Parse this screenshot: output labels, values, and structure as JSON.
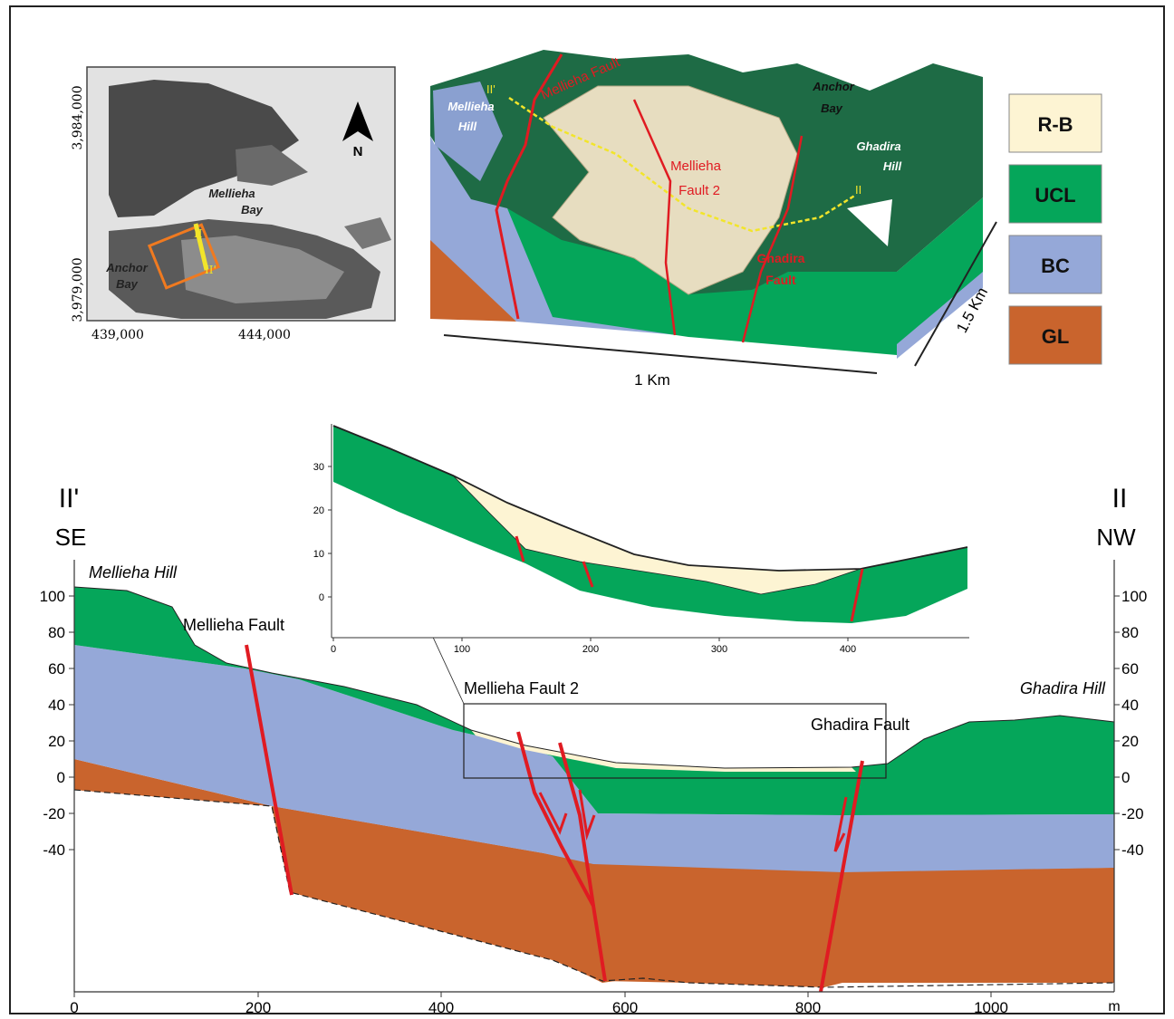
{
  "figure": {
    "map": {
      "north_label": "N",
      "bay_label_1": "Mellieha",
      "bay_label_2": "Bay",
      "anchor_label_1": "Anchor",
      "anchor_label_2": "Bay",
      "section_end_a": "II",
      "section_end_b": "II'",
      "y_ticks": [
        "3,984,000",
        "3,979,000"
      ],
      "x_ticks": [
        "439,000",
        "444,000"
      ]
    },
    "block3d": {
      "labels": {
        "mellieha_fault": "Mellieha Fault",
        "mellieha_fault_2_a": "Mellieha",
        "mellieha_fault_2_b": "Fault 2",
        "ghadira_fault_a": "Ghadira",
        "ghadira_fault_b": "Fault",
        "mellieha_hill_a": "Mellieha",
        "mellieha_hill_b": "Hill",
        "ghadira_hill_a": "Ghadira",
        "ghadira_hill_b": "Hill",
        "anchor_bay_a": "Anchor",
        "anchor_bay_b": "Bay",
        "section_a": "II'",
        "section_b": "II"
      },
      "scale_length": "1 Km",
      "scale_width": "1.5 Km"
    },
    "legend": [
      {
        "code": "R-B",
        "color": "#fdf4d3"
      },
      {
        "code": "UCL",
        "color": "#05a65a"
      },
      {
        "code": "BC",
        "color": "#95a8d8"
      },
      {
        "code": "GL",
        "color": "#c9642d"
      }
    ],
    "section": {
      "left_end": "II'",
      "left_dir": "SE",
      "right_end": "II",
      "right_dir": "NW",
      "left_hill": "Mellieha Hill",
      "right_hill": "Ghadira Hill",
      "fault_labels": [
        "Mellieha Fault",
        "Mellieha Fault 2",
        "Ghadira Fault"
      ],
      "y_axis_ticks": [
        "100",
        "80",
        "60",
        "40",
        "20",
        "0",
        "-20",
        "-40"
      ],
      "x_axis_ticks": [
        "0",
        "200",
        "400",
        "600",
        "800",
        "1000"
      ],
      "x_unit": "m"
    },
    "inset": {
      "y_ticks": [
        "30",
        "20",
        "10",
        "0"
      ],
      "x_ticks": [
        "0",
        "100",
        "200",
        "300",
        "400"
      ]
    }
  }
}
